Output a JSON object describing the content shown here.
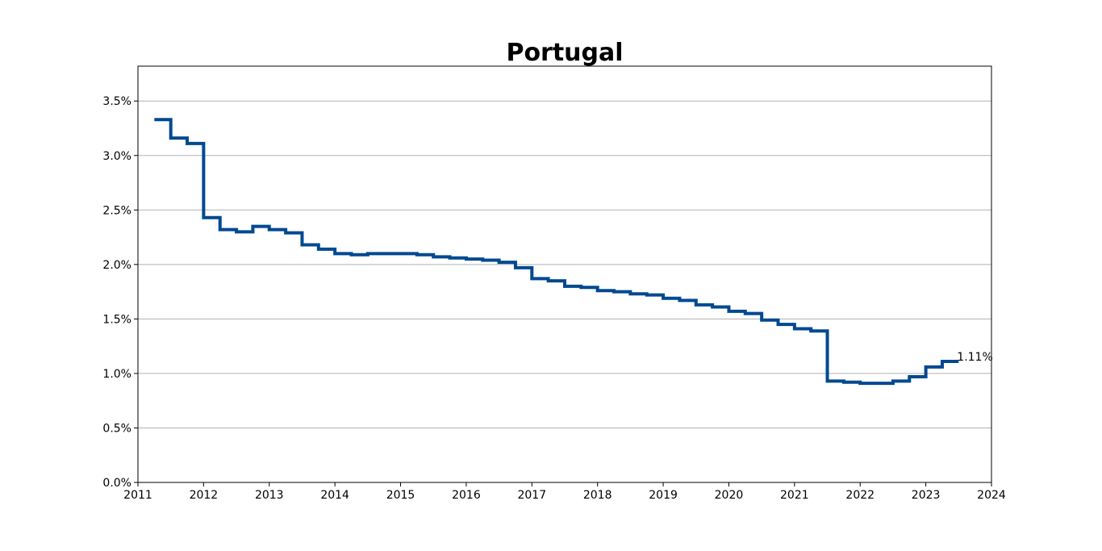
{
  "chart_data": {
    "type": "line",
    "style": "step",
    "title": "Portugal",
    "xlabel": "",
    "ylabel": "",
    "xlim": [
      2011,
      2024
    ],
    "ylim": [
      0,
      3.82
    ],
    "grid": "horizontal",
    "x_ticks": [
      "2011",
      "2012",
      "2013",
      "2014",
      "2015",
      "2016",
      "2017",
      "2018",
      "2019",
      "2020",
      "2021",
      "2022",
      "2023",
      "2024"
    ],
    "y_ticks": [
      "0.0%",
      "0.5%",
      "1.0%",
      "1.5%",
      "2.0%",
      "2.5%",
      "3.0%",
      "3.5%"
    ],
    "line_color": "#004990",
    "series": [
      {
        "x": [
          2011.25,
          2011.5,
          2011.75,
          2012.0,
          2012.25,
          2012.5,
          2012.75,
          2013.0,
          2013.25,
          2013.5,
          2013.75,
          2014.0,
          2014.25,
          2014.5,
          2014.75,
          2015.0,
          2015.25,
          2015.5,
          2015.75,
          2016.0,
          2016.25,
          2016.5,
          2016.75,
          2017.0,
          2017.25,
          2017.5,
          2017.75,
          2018.0,
          2018.25,
          2018.5,
          2018.75,
          2019.0,
          2019.25,
          2019.5,
          2019.75,
          2020.0,
          2020.25,
          2020.5,
          2020.75,
          2021.0,
          2021.25,
          2021.5,
          2021.75,
          2022.0,
          2022.25,
          2022.5,
          2022.75,
          2023.0,
          2023.25,
          2023.5
        ],
        "y": [
          3.33,
          3.16,
          3.11,
          2.43,
          2.32,
          2.3,
          2.35,
          2.32,
          2.29,
          2.18,
          2.14,
          2.1,
          2.09,
          2.1,
          2.1,
          2.1,
          2.09,
          2.07,
          2.06,
          2.05,
          2.04,
          2.02,
          1.97,
          1.87,
          1.85,
          1.8,
          1.79,
          1.76,
          1.75,
          1.73,
          1.72,
          1.69,
          1.67,
          1.63,
          1.61,
          1.57,
          1.55,
          1.49,
          1.45,
          1.41,
          1.39,
          0.93,
          0.92,
          0.91,
          0.91,
          0.93,
          0.97,
          1.06,
          1.11,
          1.11
        ]
      }
    ],
    "annotations": [
      {
        "text": "1.11%",
        "x": 2023.5,
        "y": 1.11
      }
    ]
  }
}
